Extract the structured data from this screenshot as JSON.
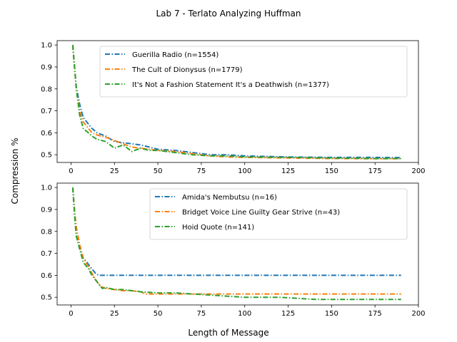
{
  "title": "Lab 7 - Terlato Analyzing Huffman",
  "xlabel": "Length of Message",
  "ylabel": "Compression %",
  "chart_data": [
    {
      "type": "line",
      "xlim": [
        -8,
        200
      ],
      "ylim": [
        0.465,
        1.02
      ],
      "xticks": [
        0,
        25,
        50,
        75,
        100,
        125,
        150,
        175,
        200
      ],
      "yticks": [
        0.5,
        0.6,
        0.7,
        0.8,
        0.9,
        1.0
      ],
      "legend_position": "top-right",
      "grid": false,
      "series": [
        {
          "name": "Guerilla Radio (n=1554)",
          "color": "#1f77b4",
          "x": [
            1,
            3,
            5,
            7,
            10,
            12,
            15,
            20,
            25,
            30,
            35,
            40,
            45,
            50,
            60,
            70,
            80,
            90,
            100,
            125,
            150,
            175,
            190
          ],
          "y": [
            1.0,
            0.81,
            0.73,
            0.67,
            0.64,
            0.62,
            0.6,
            0.585,
            0.56,
            0.555,
            0.55,
            0.545,
            0.535,
            0.525,
            0.52,
            0.51,
            0.5,
            0.5,
            0.495,
            0.49,
            0.488,
            0.488,
            0.487
          ]
        },
        {
          "name": "The Cult of Dionysus (n=1779)",
          "color": "#ff7f0e",
          "x": [
            1,
            3,
            5,
            7,
            10,
            12,
            15,
            20,
            25,
            30,
            35,
            40,
            45,
            50,
            60,
            70,
            80,
            90,
            100,
            125,
            150,
            175,
            190
          ],
          "y": [
            1.0,
            0.8,
            0.7,
            0.65,
            0.62,
            0.6,
            0.59,
            0.58,
            0.565,
            0.55,
            0.535,
            0.53,
            0.525,
            0.52,
            0.515,
            0.505,
            0.495,
            0.49,
            0.488,
            0.485,
            0.483,
            0.482,
            0.482
          ]
        },
        {
          "name": "It's Not a Fashion Statement It's a Deathwish (n=1377)",
          "color": "#2ca02c",
          "x": [
            1,
            3,
            5,
            7,
            10,
            12,
            15,
            20,
            25,
            30,
            35,
            40,
            45,
            50,
            60,
            70,
            80,
            90,
            100,
            125,
            150,
            175,
            190
          ],
          "y": [
            1.0,
            0.8,
            0.68,
            0.62,
            0.6,
            0.585,
            0.57,
            0.56,
            0.53,
            0.545,
            0.515,
            0.53,
            0.52,
            0.52,
            0.51,
            0.5,
            0.495,
            0.495,
            0.49,
            0.488,
            0.485,
            0.483,
            0.483
          ]
        }
      ]
    },
    {
      "type": "line",
      "xlim": [
        -8,
        200
      ],
      "ylim": [
        0.465,
        1.02
      ],
      "xticks": [
        0,
        25,
        50,
        75,
        100,
        125,
        150,
        175,
        200
      ],
      "yticks": [
        0.5,
        0.6,
        0.7,
        0.8,
        0.9,
        1.0
      ],
      "legend_position": "top-right",
      "grid": false,
      "series": [
        {
          "name": "Amida's Nembutsu (n=16)",
          "color": "#1f77b4",
          "x": [
            1,
            2,
            3,
            4,
            5,
            6,
            7,
            8,
            9,
            10,
            11,
            12,
            13,
            14,
            15,
            16,
            190
          ],
          "y": [
            1.0,
            0.9,
            0.78,
            0.75,
            0.72,
            0.7,
            0.68,
            0.67,
            0.66,
            0.65,
            0.64,
            0.63,
            0.62,
            0.61,
            0.605,
            0.6,
            0.6
          ]
        },
        {
          "name": "Bridget Voice Line Guilty Gear Strive (n=43)",
          "color": "#ff7f0e",
          "x": [
            1,
            2,
            3,
            4,
            5,
            7,
            10,
            12,
            15,
            17,
            20,
            25,
            30,
            35,
            40,
            43,
            60,
            80,
            100,
            190
          ],
          "y": [
            1.0,
            0.9,
            0.82,
            0.78,
            0.74,
            0.68,
            0.64,
            0.61,
            0.57,
            0.55,
            0.54,
            0.535,
            0.53,
            0.53,
            0.525,
            0.515,
            0.515,
            0.515,
            0.515,
            0.515
          ]
        },
        {
          "name": "Hoid Quote (n=141)",
          "color": "#2ca02c",
          "x": [
            1,
            2,
            3,
            5,
            7,
            10,
            12,
            15,
            18,
            20,
            25,
            30,
            35,
            40,
            50,
            60,
            70,
            80,
            90,
            100,
            120,
            141,
            190
          ],
          "y": [
            1.0,
            0.88,
            0.78,
            0.72,
            0.66,
            0.63,
            0.6,
            0.57,
            0.54,
            0.545,
            0.535,
            0.535,
            0.53,
            0.525,
            0.52,
            0.52,
            0.515,
            0.51,
            0.505,
            0.5,
            0.5,
            0.49,
            0.49
          ]
        }
      ]
    }
  ]
}
